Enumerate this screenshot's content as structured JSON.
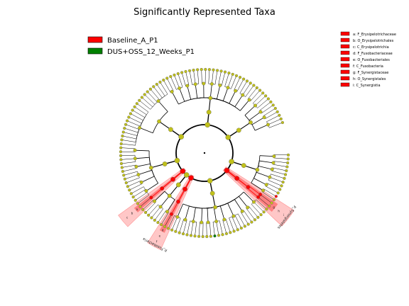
{
  "chart_data": {
    "type": "cladogram",
    "title": "Significantly Represented Taxa",
    "groups": [
      {
        "name": "Baseline_A_P1",
        "color": "#ff0000"
      },
      {
        "name": "DUS+OSS_12_Weeks_P1",
        "color": "#008000"
      }
    ],
    "node_color": "#c0c01a",
    "taxa_legend": [
      {
        "letter": "a",
        "name": "F_Erysipelotrichaceae",
        "group": "Baseline_A_P1"
      },
      {
        "letter": "b",
        "name": "O_Erysipelotrichales",
        "group": "Baseline_A_P1"
      },
      {
        "letter": "c",
        "name": "C_Erysipelotrichia",
        "group": "Baseline_A_P1"
      },
      {
        "letter": "d",
        "name": "F_Fusobacteriaceae",
        "group": "Baseline_A_P1"
      },
      {
        "letter": "e",
        "name": "O_Fusobacteriales",
        "group": "Baseline_A_P1"
      },
      {
        "letter": "f",
        "name": "C_Fusobacteria",
        "group": "Baseline_A_P1"
      },
      {
        "letter": "g",
        "name": "F_Synergistaceae",
        "group": "Baseline_A_P1"
      },
      {
        "letter": "h",
        "name": "O_Synergistales",
        "group": "Baseline_A_P1"
      },
      {
        "letter": "i",
        "name": "C_Synergistia",
        "group": "Baseline_A_P1"
      }
    ],
    "highlighted_clades": [
      {
        "label": "p_Synergistetes",
        "group": "Baseline_A_P1",
        "letters": [
          "g",
          "h",
          "i"
        ]
      },
      {
        "label": "p_Fusobacteria",
        "group": "Baseline_A_P1",
        "letters": [
          "d",
          "e",
          "f"
        ]
      },
      {
        "label": "",
        "group": "Baseline_A_P1",
        "letters": [
          "a",
          "b",
          "c"
        ]
      }
    ]
  }
}
